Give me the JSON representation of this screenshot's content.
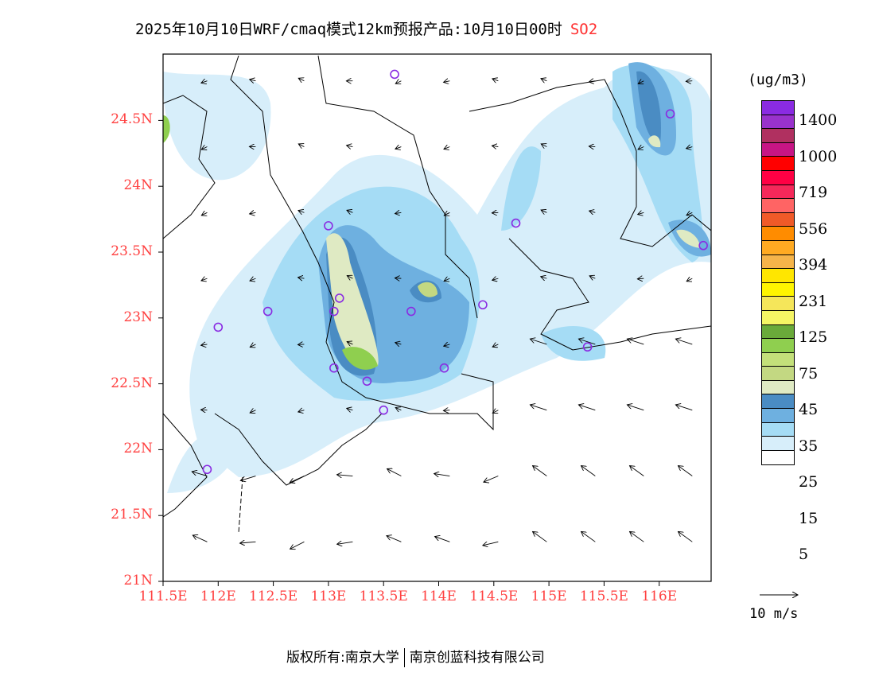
{
  "title": {
    "main": "2025年10月10日WRF/cmaq模式12km预报产品:10月10日00时",
    "species": "SO2"
  },
  "axes": {
    "lat_labels": [
      "24.5N",
      "24N",
      "23.5N",
      "23N",
      "22.5N",
      "22N",
      "21.5N",
      "21N"
    ],
    "lat_values": [
      24.5,
      24,
      23.5,
      23,
      22.5,
      22,
      21.5,
      21
    ],
    "lon_labels": [
      "111.5E",
      "112E",
      "112.5E",
      "113E",
      "113.5E",
      "114E",
      "114.5E",
      "115E",
      "115.5E",
      "116E"
    ],
    "lon_values": [
      111.5,
      112,
      112.5,
      113,
      113.5,
      114,
      114.5,
      115,
      115.5,
      116
    ],
    "lon_range": [
      111.5,
      116.5
    ],
    "lat_range": [
      21,
      25
    ]
  },
  "colorbar": {
    "unit": "(ug/m3)",
    "labels": [
      "1400",
      "1000",
      "719",
      "556",
      "394",
      "231",
      "125",
      "75",
      "45",
      "35",
      "25",
      "15",
      "5"
    ],
    "colors": [
      "#8a2be2",
      "#9932cc",
      "#b03060",
      "#c71585",
      "#ff0000",
      "#ff0044",
      "#f5285a",
      "#ff6464",
      "#f05a28",
      "#ff8c00",
      "#ffaa22",
      "#f5b44a",
      "#ffe600",
      "#fff500",
      "#f5e65a",
      "#f5f564",
      "#6aaa3a",
      "#8fcf4f",
      "#c3e07a",
      "#c3d882",
      "#dfeac3",
      "#4a8cc3",
      "#6eb0e0",
      "#a5dcf5",
      "#d7eefa",
      "#ffffff"
    ]
  },
  "wind_legend": "10 m/s",
  "copyright": {
    "left": "版权所有:南京大学",
    "right": "南京创蓝科技有限公司"
  },
  "stations": [
    [
      113.6,
      24.85
    ],
    [
      116.1,
      24.55
    ],
    [
      114.7,
      23.72
    ],
    [
      116.4,
      23.55
    ],
    [
      113.0,
      23.7
    ],
    [
      113.1,
      23.15
    ],
    [
      113.05,
      23.05
    ],
    [
      112.45,
      23.05
    ],
    [
      112.0,
      22.93
    ],
    [
      113.75,
      23.05
    ],
    [
      114.4,
      23.1
    ],
    [
      115.35,
      22.78
    ],
    [
      113.05,
      22.62
    ],
    [
      114.05,
      22.62
    ],
    [
      113.35,
      22.52
    ],
    [
      113.5,
      22.3
    ],
    [
      111.9,
      21.85
    ]
  ]
}
